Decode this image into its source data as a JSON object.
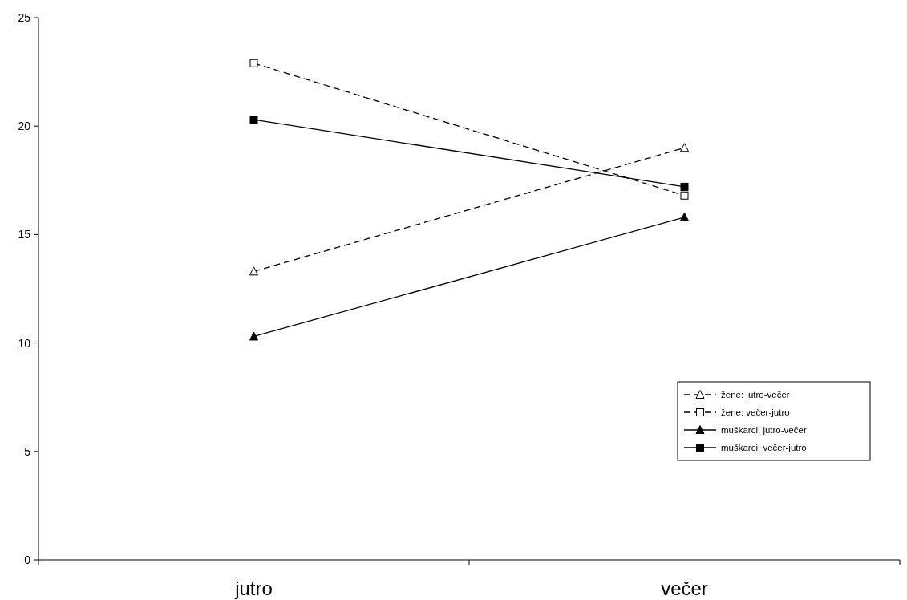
{
  "chart_data": {
    "type": "line",
    "categories": [
      "jutro",
      "večer"
    ],
    "series": [
      {
        "name": "žene: jutro-večer",
        "color": "#000000",
        "values": [
          13.3,
          19.0
        ],
        "marker": "triangle",
        "line_style": "dashed"
      },
      {
        "name": "žene: večer-jutro",
        "color": "#000000",
        "values": [
          22.9,
          16.8
        ],
        "marker": "square",
        "line_style": "dashed"
      },
      {
        "name": "muškarci: jutro-večer",
        "color": "#000000",
        "values": [
          10.3,
          15.8
        ],
        "marker": "triangle",
        "line_style": "solid"
      },
      {
        "name": "muškarci: večer-jutro",
        "color": "#000000",
        "values": [
          20.3,
          17.2
        ],
        "marker": "square",
        "line_style": "solid"
      }
    ],
    "ylim": [
      0,
      25
    ],
    "yticks": [
      0,
      5,
      10,
      15,
      20,
      25
    ],
    "grid": false,
    "legend": "right"
  }
}
